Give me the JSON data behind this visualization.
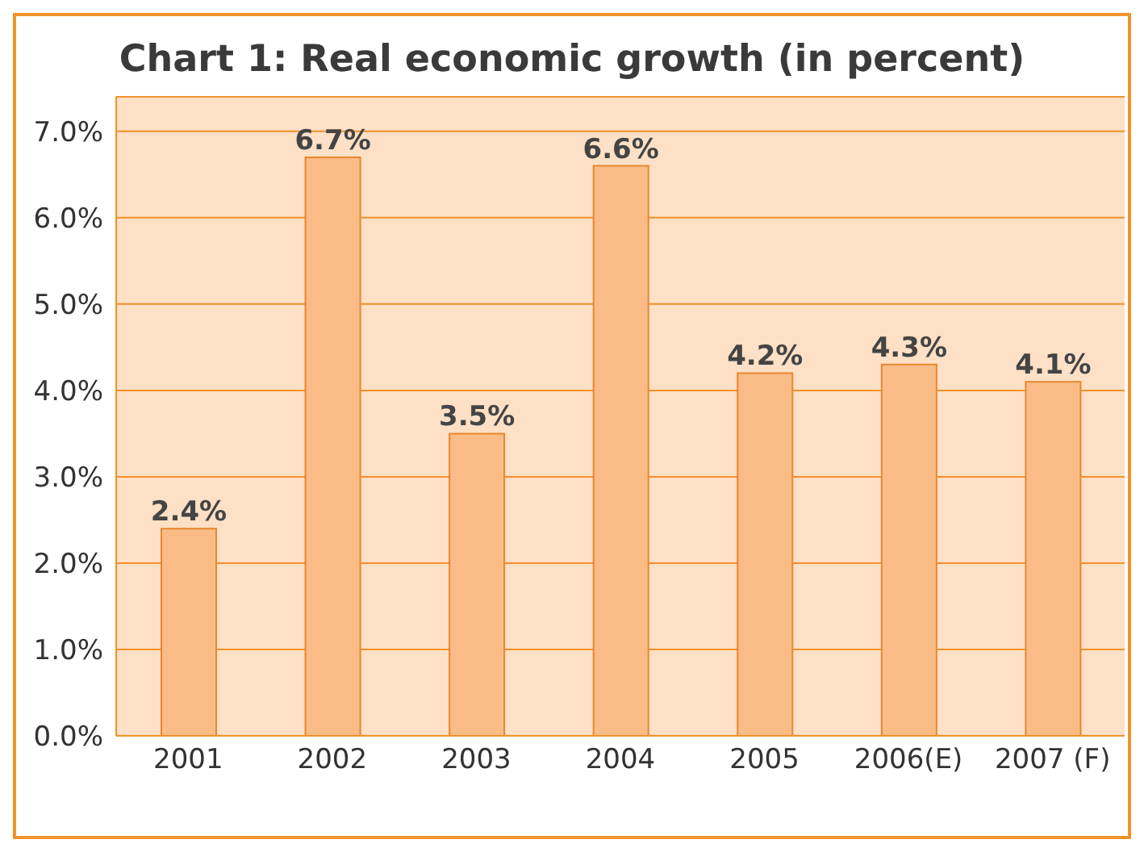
{
  "chart_data": {
    "type": "bar",
    "title": "Chart 1: Real economic growth (in percent)",
    "categories": [
      "2001",
      "2002",
      "2003",
      "2004",
      "2005",
      "2006(E)",
      "2007 (F)"
    ],
    "values": [
      2.4,
      6.7,
      3.5,
      6.6,
      4.2,
      4.3,
      4.1
    ],
    "value_labels": [
      "2.4%",
      "6.7%",
      "3.5%",
      "6.6%",
      "4.2%",
      "4.3%",
      "4.1%"
    ],
    "color": "#f9bc86",
    "ylim": [
      0,
      7.4
    ],
    "yticks": [
      {
        "value": 0,
        "label": "0.0%"
      },
      {
        "value": 1,
        "label": "1.0%"
      },
      {
        "value": 2,
        "label": "2.0%"
      },
      {
        "value": 3,
        "label": "3.0%"
      },
      {
        "value": 4,
        "label": "4.0%"
      },
      {
        "value": 5,
        "label": "5.0%"
      },
      {
        "value": 6,
        "label": "6.0%"
      },
      {
        "value": 7,
        "label": "7.0%"
      }
    ],
    "grid": "y"
  }
}
